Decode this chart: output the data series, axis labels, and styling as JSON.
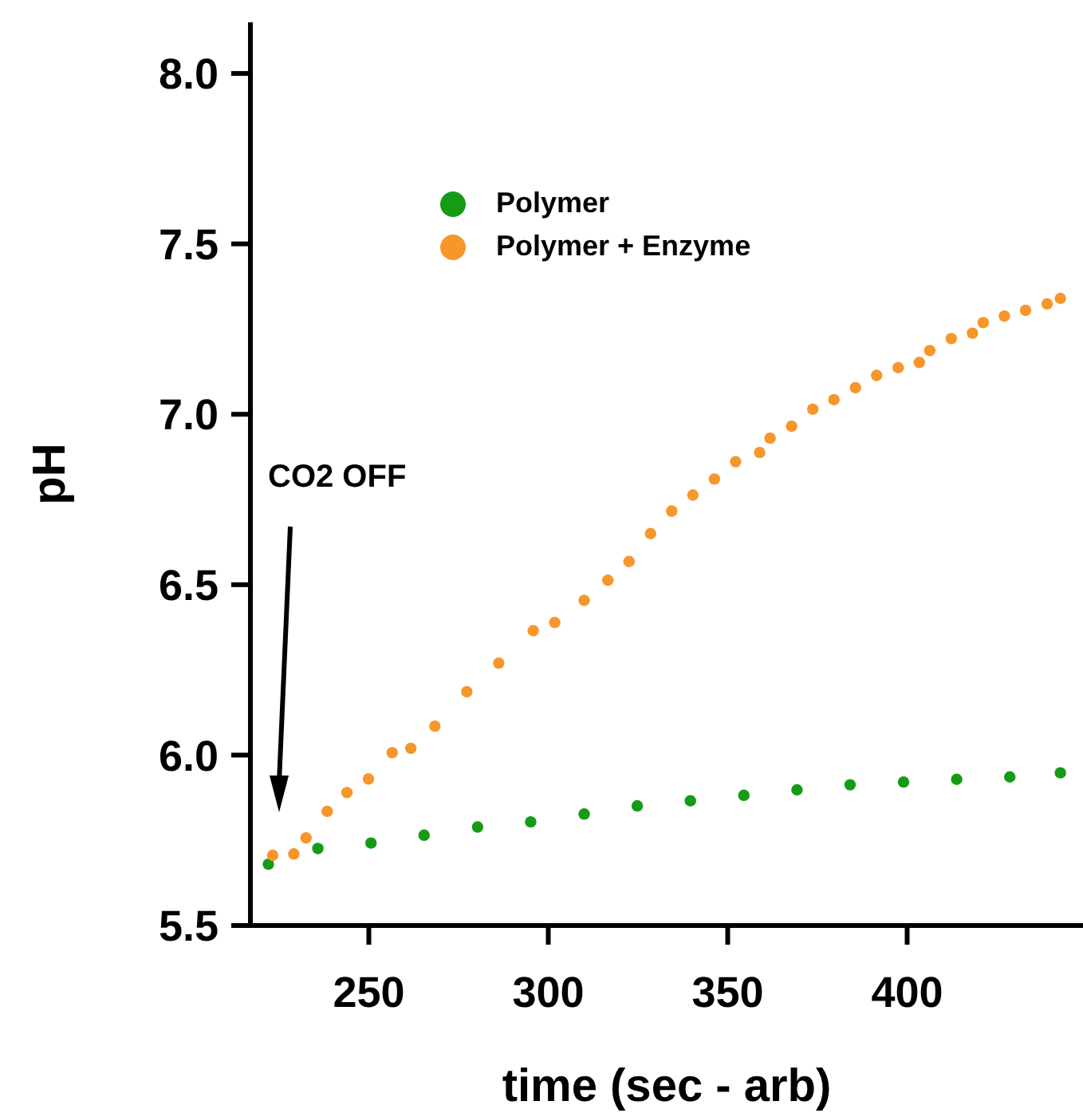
{
  "chart_data": {
    "type": "scatter",
    "xlabel": "time (sec - arb)",
    "ylabel": "pH",
    "xlim": [
      217,
      449
    ],
    "xticks": [
      250,
      300,
      350,
      400
    ],
    "ylim": [
      5.5,
      8.15
    ],
    "yticks": [
      {
        "value": 5.5,
        "label": "5.5"
      },
      {
        "value": 6,
        "label": "6.0"
      },
      {
        "value": 6.5,
        "label": "6.5"
      },
      {
        "value": 7,
        "label": "7.0"
      },
      {
        "value": 7.5,
        "label": "7.5"
      },
      {
        "value": 8,
        "label": "8.0"
      }
    ],
    "grid": false,
    "legend": "top",
    "marker": "circle",
    "annotations": [
      "CO2 OFF"
    ],
    "series": [
      {
        "name": "Polymer",
        "color": "#169b16",
        "x": [
          222,
          235.8,
          250.6,
          265.4,
          280.3,
          295.1,
          310,
          324.8,
          339.6,
          354.5,
          369.3,
          384.1,
          399,
          413.8,
          428.6,
          442.7
        ],
        "values": [
          5.68,
          5.726,
          5.742,
          5.765,
          5.789,
          5.804,
          5.827,
          5.851,
          5.866,
          5.882,
          5.898,
          5.913,
          5.921,
          5.929,
          5.936,
          5.948
        ]
      },
      {
        "name": "Polymer + Enzyme",
        "color": "#f7962b",
        "x": [
          223.2,
          229.1,
          232.5,
          238.4,
          243.9,
          249.9,
          256.5,
          261.7,
          268.4,
          277.3,
          286.2,
          295.8,
          301.8,
          310,
          316.6,
          322.5,
          328.5,
          334.4,
          340.3,
          346.3,
          352.2,
          358.9,
          361.8,
          367.8,
          373.7,
          379.6,
          385.6,
          391.5,
          397.5,
          403.4,
          406.3,
          412.3,
          418.2,
          421.2,
          427.1,
          433,
          439,
          442.7
        ],
        "values": [
          5.706,
          5.71,
          5.757,
          5.835,
          5.89,
          5.93,
          6.007,
          6.02,
          6.085,
          6.186,
          6.27,
          6.365,
          6.389,
          6.454,
          6.513,
          6.568,
          6.65,
          6.716,
          6.763,
          6.81,
          6.861,
          6.888,
          6.93,
          6.965,
          7.015,
          7.043,
          7.078,
          7.114,
          7.137,
          7.152,
          7.187,
          7.222,
          7.238,
          7.269,
          7.288,
          7.305,
          7.324,
          7.34
        ]
      }
    ]
  }
}
